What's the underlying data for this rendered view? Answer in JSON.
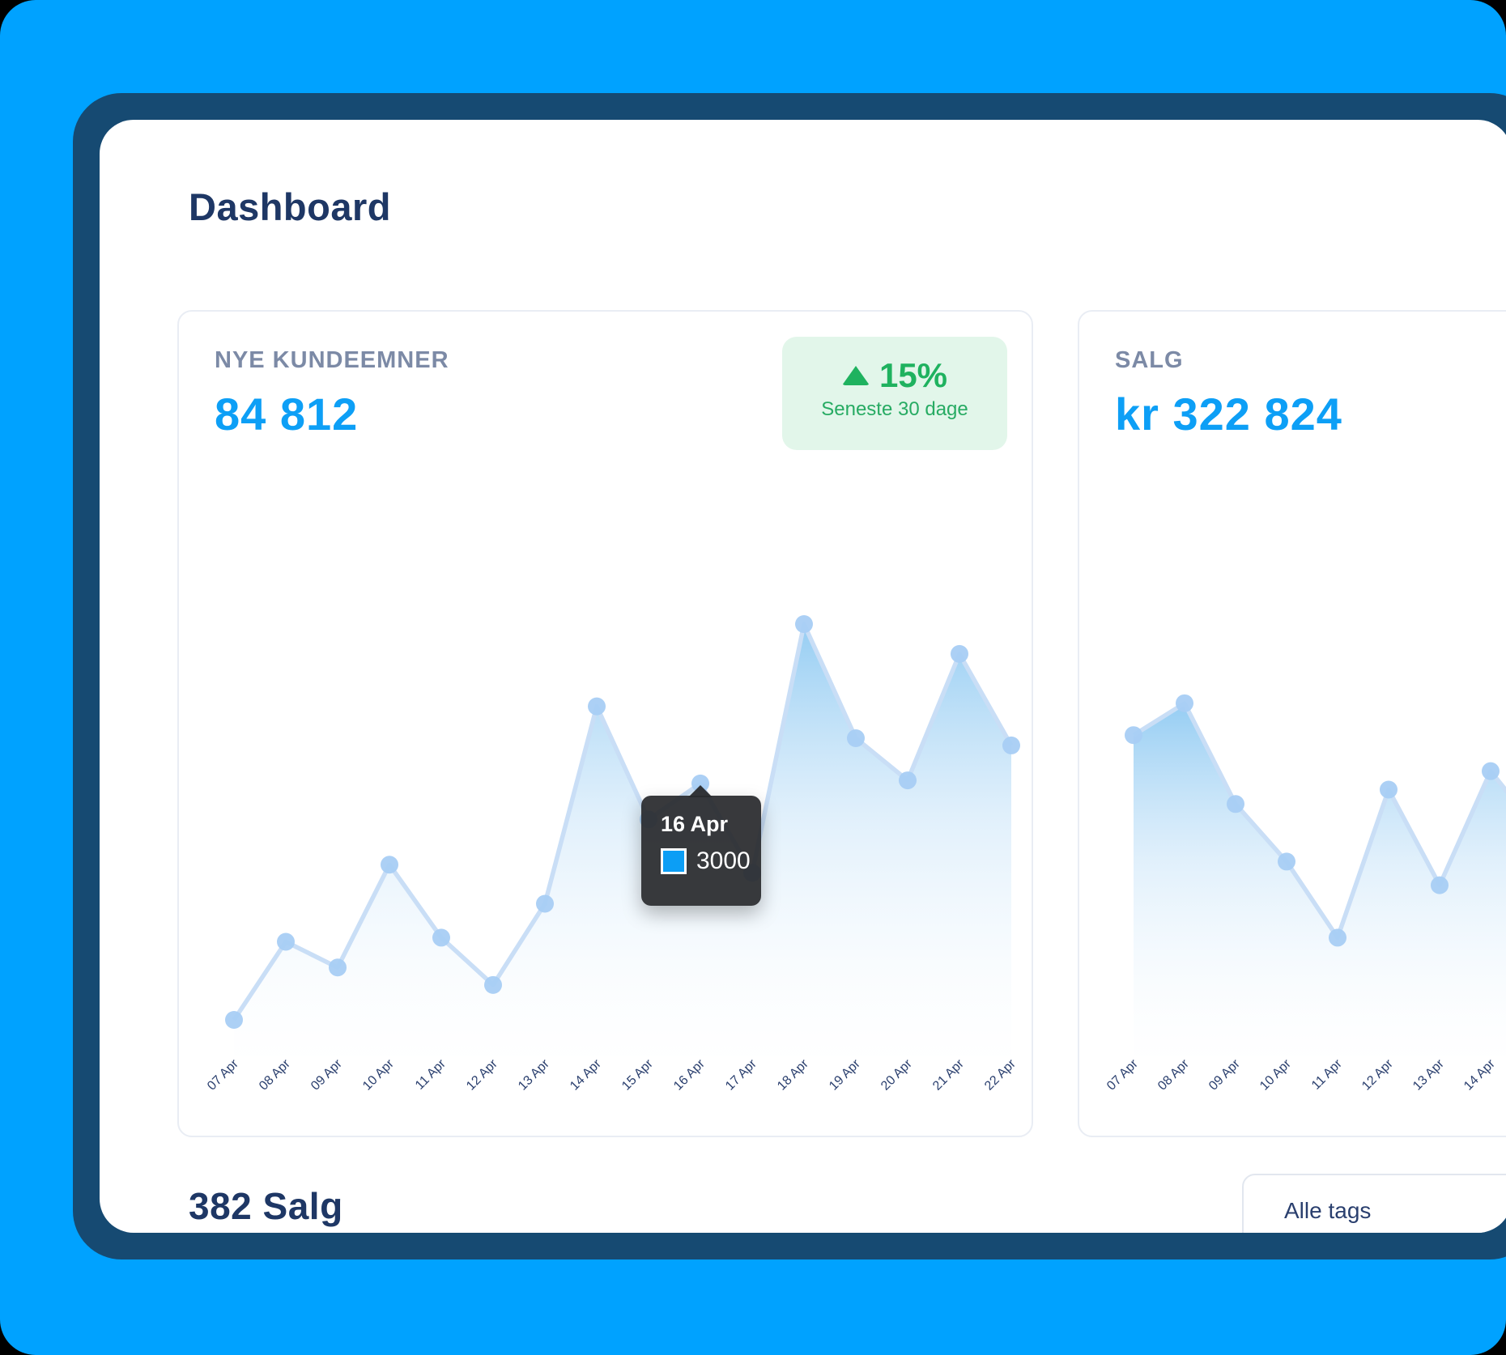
{
  "header": {
    "title": "Dashboard"
  },
  "cards": {
    "leads": {
      "label": "NYE KUNDEEMNER",
      "value": "84 812",
      "badge": {
        "direction": "up",
        "delta": "15%",
        "caption": "Seneste 30 dage"
      }
    },
    "sales": {
      "label": "SALG",
      "value": "kr 322 824"
    }
  },
  "tooltip": {
    "date": "16 Apr",
    "value": "3000"
  },
  "footer": {
    "sales_count": "382 Salg",
    "tags_dropdown": "Alle tags"
  },
  "colors": {
    "background": "#00a2ff",
    "frame": "#164a72",
    "navy_text": "#1e3765",
    "label_gray": "#7c8aa6",
    "accent_blue": "#0d9ff6",
    "green": "#1fb25f",
    "green_bg": "#e2f6ea",
    "chart_line": "#c9def6",
    "chart_dot": "#a8cdf4",
    "axis_label": "#2a3f6e",
    "tooltip_bg": "#292a2d",
    "tooltip_marker": "#0c9ef5"
  },
  "chart_data": [
    {
      "type": "line",
      "title": "Nye kundeemner",
      "categories": [
        "07 Apr",
        "08 Apr",
        "09 Apr",
        "10 Apr",
        "11 Apr",
        "12 Apr",
        "13 Apr",
        "14 Apr",
        "15 Apr",
        "16 Apr",
        "17 Apr",
        "18 Apr",
        "19 Apr",
        "20 Apr",
        "21 Apr",
        "22 Apr"
      ],
      "values": [
        700,
        1460,
        1210,
        2210,
        1500,
        1040,
        1830,
        3750,
        2650,
        3000,
        2130,
        4550,
        3440,
        3030,
        4260,
        3370
      ],
      "highlight": {
        "category": "16 Apr",
        "value": 3000
      },
      "xlabel": "",
      "ylabel": "",
      "ylim": [
        0,
        5000
      ],
      "grid": false,
      "legend": false
    },
    {
      "type": "line",
      "title": "Salg",
      "categories": [
        "07 Apr",
        "08 Apr",
        "09 Apr",
        "10 Apr",
        "11 Apr",
        "12 Apr",
        "13 Apr",
        "14 Apr"
      ],
      "values": [
        3470,
        3780,
        2800,
        2240,
        1500,
        2940,
        2010,
        3120
      ],
      "trailing_value": 2500,
      "xlabel": "",
      "ylabel": "",
      "ylim": [
        0,
        5000
      ],
      "grid": false,
      "legend": false
    }
  ]
}
